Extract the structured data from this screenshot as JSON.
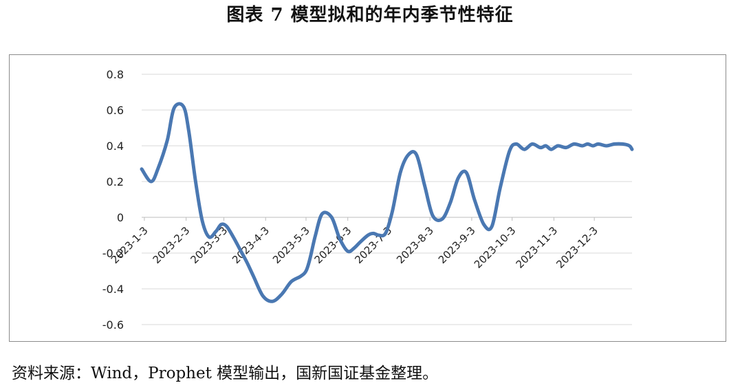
{
  "header": {
    "title": "图表 7  模型拟和的年内季节性特征"
  },
  "footer": {
    "source": "资料来源：Wind，Prophet 模型输出，国新国证基金整理。"
  },
  "chart_data": {
    "type": "line",
    "title": "",
    "xlabel": "",
    "ylabel": "",
    "ylim": [
      -0.6,
      0.8
    ],
    "ytick_step": 0.2,
    "y_tick_labels": [
      "-0.6",
      "-0.4",
      "-0.2",
      "0",
      "0.2",
      "0.4",
      "0.6",
      "0.8"
    ],
    "x_tick_labels": [
      "2023-1-3",
      "2023-2-3",
      "2023-3-3",
      "2023-4-3",
      "2023-5-3",
      "2023-6-3",
      "2023-7-3",
      "2023-8-3",
      "2023-9-3",
      "2023-10-3",
      "2023-11-3",
      "2023-12-3"
    ],
    "grid": true,
    "legend": "none",
    "line_color": "#4a78b2",
    "series": [
      {
        "name": "",
        "x": [
          "2023-1-1",
          "2023-1-8",
          "2023-1-13",
          "2023-1-20",
          "2023-1-25",
          "2023-2-1",
          "2023-2-5",
          "2023-2-10",
          "2023-2-15",
          "2023-2-20",
          "2023-2-25",
          "2023-3-1",
          "2023-3-5",
          "2023-3-10",
          "2023-3-15",
          "2023-3-20",
          "2023-3-25",
          "2023-4-1",
          "2023-4-8",
          "2023-4-15",
          "2023-4-22",
          "2023-4-29",
          "2023-5-3",
          "2023-5-6",
          "2023-5-10",
          "2023-5-15",
          "2023-5-22",
          "2023-5-28",
          "2023-6-3",
          "2023-6-8",
          "2023-6-12",
          "2023-6-18",
          "2023-6-22",
          "2023-6-26",
          "2023-7-1",
          "2023-7-6",
          "2023-7-12",
          "2023-7-18",
          "2023-7-24",
          "2023-7-30",
          "2023-8-5",
          "2023-8-12",
          "2023-8-18",
          "2023-8-24",
          "2023-8-30",
          "2023-9-5",
          "2023-9-12",
          "2023-9-18",
          "2023-9-24",
          "2023-10-1",
          "2023-10-6",
          "2023-10-12",
          "2023-10-18",
          "2023-10-24",
          "2023-10-28",
          "2023-11-1",
          "2023-11-6",
          "2023-11-12",
          "2023-11-18",
          "2023-11-24",
          "2023-11-28",
          "2023-12-2",
          "2023-12-6",
          "2023-12-12",
          "2023-12-18",
          "2023-12-24",
          "2023-12-29",
          "2023-12-31"
        ],
        "values": [
          0.27,
          0.2,
          0.27,
          0.43,
          0.61,
          0.62,
          0.48,
          0.2,
          -0.02,
          -0.11,
          -0.08,
          -0.04,
          -0.05,
          -0.11,
          -0.18,
          -0.25,
          -0.33,
          -0.44,
          -0.47,
          -0.43,
          -0.36,
          -0.33,
          -0.3,
          -0.23,
          -0.1,
          0.02,
          0.0,
          -0.12,
          -0.19,
          -0.17,
          -0.14,
          -0.1,
          -0.09,
          -0.1,
          -0.09,
          0.03,
          0.25,
          0.35,
          0.35,
          0.18,
          0.01,
          -0.01,
          0.08,
          0.22,
          0.25,
          0.1,
          -0.04,
          -0.05,
          0.16,
          0.37,
          0.41,
          0.38,
          0.41,
          0.39,
          0.4,
          0.38,
          0.4,
          0.39,
          0.41,
          0.4,
          0.41,
          0.4,
          0.41,
          0.4,
          0.41,
          0.41,
          0.4,
          0.38
        ]
      }
    ]
  }
}
